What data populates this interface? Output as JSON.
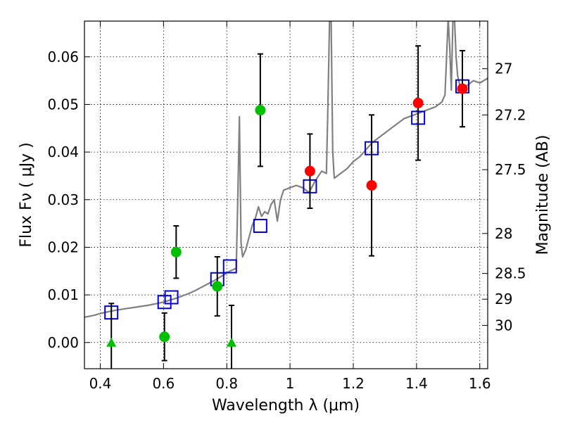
{
  "chart_data": {
    "type": "scatter",
    "title": "",
    "xlabel": "Wavelength  λ (μm)",
    "ylabel": "Flux  Fν  ( μJy )",
    "ylabel_right": "Magnitude (AB)",
    "xlim": [
      0.35,
      1.625
    ],
    "ylim": [
      -0.0055,
      0.0675
    ],
    "grid": true,
    "xticks": [
      0.4,
      0.6,
      0.8,
      1.0,
      1.2,
      1.4,
      1.6
    ],
    "xtick_labels": [
      "0.4",
      "0.6",
      "0.8",
      "1",
      "1.2",
      "1.4",
      "1.6"
    ],
    "yticks": [
      0.0,
      0.01,
      0.02,
      0.03,
      0.04,
      0.05,
      0.06
    ],
    "ytick_labels": [
      "0.00",
      "0.01",
      "0.02",
      "0.03",
      "0.04",
      "0.05",
      "0.06"
    ],
    "mag_ticks": [
      {
        "label": "27",
        "flux": 0.0575
      },
      {
        "label": "27.2",
        "flux": 0.0478
      },
      {
        "label": "27.5",
        "flux": 0.0363
      },
      {
        "label": "28",
        "flux": 0.0229
      },
      {
        "label": "28.5",
        "flux": 0.0145
      },
      {
        "label": "29",
        "flux": 0.0091
      },
      {
        "label": "30",
        "flux": 0.0036
      }
    ],
    "series": [
      {
        "kind": "model-spectrum",
        "color": "#808080",
        "x": [
          0.35,
          0.38,
          0.4,
          0.42,
          0.45,
          0.48,
          0.5,
          0.52,
          0.55,
          0.58,
          0.6,
          0.62,
          0.64,
          0.66,
          0.68,
          0.7,
          0.72,
          0.74,
          0.76,
          0.78,
          0.8,
          0.81,
          0.82,
          0.83,
          0.835,
          0.84,
          0.845,
          0.85,
          0.86,
          0.87,
          0.88,
          0.89,
          0.9,
          0.91,
          0.92,
          0.93,
          0.94,
          0.95,
          0.96,
          0.97,
          0.98,
          1.0,
          1.02,
          1.04,
          1.06,
          1.08,
          1.1,
          1.115,
          1.12,
          1.125,
          1.13,
          1.135,
          1.14,
          1.16,
          1.18,
          1.2,
          1.22,
          1.24,
          1.26,
          1.28,
          1.3,
          1.32,
          1.34,
          1.36,
          1.38,
          1.4,
          1.42,
          1.44,
          1.46,
          1.48,
          1.49,
          1.495,
          1.5,
          1.505,
          1.51,
          1.515,
          1.52,
          1.525,
          1.53,
          1.535,
          1.54,
          1.56,
          1.58,
          1.6,
          1.625
        ],
        "y": [
          0.0053,
          0.0057,
          0.0061,
          0.0064,
          0.0068,
          0.0071,
          0.0073,
          0.0075,
          0.0078,
          0.0082,
          0.0085,
          0.0089,
          0.0093,
          0.0098,
          0.0103,
          0.0109,
          0.0116,
          0.0123,
          0.013,
          0.0138,
          0.0146,
          0.015,
          0.0153,
          0.0156,
          0.031,
          0.0474,
          0.021,
          0.018,
          0.0195,
          0.022,
          0.0245,
          0.026,
          0.0285,
          0.0265,
          0.0275,
          0.027,
          0.029,
          0.03,
          0.0255,
          0.03,
          0.032,
          0.0325,
          0.033,
          0.0325,
          0.0315,
          0.034,
          0.036,
          0.0355,
          0.05,
          0.068,
          0.068,
          0.04,
          0.0345,
          0.0355,
          0.0365,
          0.038,
          0.039,
          0.0405,
          0.042,
          0.043,
          0.044,
          0.045,
          0.046,
          0.047,
          0.0475,
          0.048,
          0.0485,
          0.049,
          0.0495,
          0.0505,
          0.052,
          0.06,
          0.068,
          0.062,
          0.053,
          0.068,
          0.068,
          0.06,
          0.056,
          0.0545,
          0.053,
          0.054,
          0.055,
          0.0545,
          0.0555
        ]
      },
      {
        "kind": "model-photometry",
        "marker": "open-square",
        "color": "#0000dd",
        "x": [
          0.435,
          0.603,
          0.625,
          0.77,
          0.81,
          0.906,
          1.063,
          1.258,
          1.405,
          1.545
        ],
        "y": [
          0.0063,
          0.0085,
          0.0095,
          0.0133,
          0.016,
          0.0245,
          0.0328,
          0.0408,
          0.0472,
          0.0538
        ]
      },
      {
        "kind": "observed-red",
        "marker": "filled-circle",
        "color": "#ff0000",
        "x": [
          1.063,
          1.258,
          1.405,
          1.545
        ],
        "y": [
          0.036,
          0.033,
          0.0503,
          0.0533
        ],
        "yerr": [
          0.0078,
          0.0148,
          0.012,
          0.008
        ]
      },
      {
        "kind": "observed-green",
        "marker": "filled-circle",
        "color": "#00c000",
        "x": [
          0.603,
          0.64,
          0.77,
          0.906
        ],
        "y": [
          0.0012,
          0.019,
          0.0118,
          0.0488
        ],
        "yerr": [
          0.005,
          0.0055,
          0.0062,
          0.0118
        ]
      },
      {
        "kind": "upper-limit",
        "marker": "filled-triangle",
        "color": "#00c000",
        "x": [
          0.435,
          0.815
        ],
        "y": [
          0.0,
          0.0
        ],
        "yerr": [
          0.0082,
          0.0078
        ]
      }
    ]
  }
}
